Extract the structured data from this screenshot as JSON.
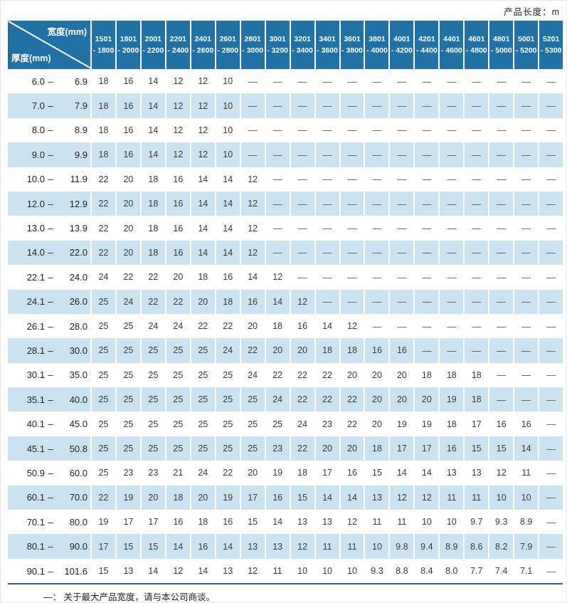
{
  "page": {
    "unit_label": "产品长度：m",
    "footnote": "—： 关于最大产品宽度，请与本公司商谈。"
  },
  "colors": {
    "header_bg": "#2171a6",
    "stripe_bg": "#cbe2f1",
    "bottom_rule": "#2e5f94"
  },
  "table": {
    "corner": {
      "width_label": "宽度(mm)",
      "thickness_label": "厚度(mm)"
    },
    "columns": [
      {
        "from": "1501",
        "to": "1800"
      },
      {
        "from": "1801",
        "to": "2000"
      },
      {
        "from": "2001",
        "to": "2200"
      },
      {
        "from": "2201",
        "to": "2400"
      },
      {
        "from": "2401",
        "to": "2600"
      },
      {
        "from": "2601",
        "to": "2800"
      },
      {
        "from": "2801",
        "to": "3000"
      },
      {
        "from": "3001",
        "to": "3200"
      },
      {
        "from": "3201",
        "to": "3400"
      },
      {
        "from": "3401",
        "to": "3600"
      },
      {
        "from": "3601",
        "to": "3800"
      },
      {
        "from": "3801",
        "to": "4000"
      },
      {
        "from": "4001",
        "to": "4200"
      },
      {
        "from": "4201",
        "to": "4400"
      },
      {
        "from": "4401",
        "to": "4600"
      },
      {
        "from": "4601",
        "to": "4800"
      },
      {
        "from": "4801",
        "to": "5000"
      },
      {
        "from": "5001",
        "to": "5200"
      },
      {
        "from": "5201",
        "to": "5300"
      }
    ],
    "rows": [
      {
        "min": "6.0",
        "max": "6.9",
        "values": [
          "18",
          "16",
          "14",
          "12",
          "12",
          "10",
          "—",
          "—",
          "—",
          "—",
          "—",
          "—",
          "—",
          "—",
          "—",
          "—",
          "—",
          "—",
          "—"
        ]
      },
      {
        "min": "7.0",
        "max": "7.9",
        "values": [
          "18",
          "16",
          "14",
          "12",
          "12",
          "10",
          "—",
          "—",
          "—",
          "—",
          "—",
          "—",
          "—",
          "—",
          "—",
          "—",
          "—",
          "—",
          "—"
        ]
      },
      {
        "min": "8.0",
        "max": "8.9",
        "values": [
          "18",
          "16",
          "14",
          "12",
          "12",
          "10",
          "—",
          "—",
          "—",
          "—",
          "—",
          "—",
          "—",
          "—",
          "—",
          "—",
          "—",
          "—",
          "—"
        ]
      },
      {
        "min": "9.0",
        "max": "9.9",
        "values": [
          "18",
          "16",
          "14",
          "12",
          "12",
          "10",
          "—",
          "—",
          "—",
          "—",
          "—",
          "—",
          "—",
          "—",
          "—",
          "—",
          "—",
          "—",
          "—"
        ]
      },
      {
        "min": "10.0",
        "max": "11.9",
        "values": [
          "22",
          "20",
          "18",
          "16",
          "14",
          "14",
          "12",
          "—",
          "—",
          "—",
          "—",
          "—",
          "—",
          "—",
          "—",
          "—",
          "—",
          "—",
          "—"
        ]
      },
      {
        "min": "12.0",
        "max": "12.9",
        "values": [
          "22",
          "20",
          "18",
          "16",
          "14",
          "14",
          "12",
          "—",
          "—",
          "—",
          "—",
          "—",
          "—",
          "—",
          "—",
          "—",
          "—",
          "—",
          "—"
        ]
      },
      {
        "min": "13.0",
        "max": "13.9",
        "values": [
          "22",
          "20",
          "18",
          "16",
          "14",
          "14",
          "12",
          "—",
          "—",
          "—",
          "—",
          "—",
          "—",
          "—",
          "—",
          "—",
          "—",
          "—",
          "—"
        ]
      },
      {
        "min": "14.0",
        "max": "22.0",
        "values": [
          "22",
          "20",
          "18",
          "16",
          "14",
          "14",
          "12",
          "—",
          "—",
          "—",
          "—",
          "—",
          "—",
          "—",
          "—",
          "—",
          "—",
          "—",
          "—"
        ]
      },
      {
        "min": "22.1",
        "max": "24.0",
        "values": [
          "24",
          "22",
          "22",
          "20",
          "18",
          "16",
          "14",
          "12",
          "—",
          "—",
          "—",
          "—",
          "—",
          "—",
          "—",
          "—",
          "—",
          "—",
          "—"
        ]
      },
      {
        "min": "24.1",
        "max": "26.0",
        "values": [
          "25",
          "24",
          "22",
          "22",
          "20",
          "18",
          "16",
          "14",
          "12",
          "—",
          "—",
          "—",
          "—",
          "—",
          "—",
          "—",
          "—",
          "—",
          "—"
        ]
      },
      {
        "min": "26.1",
        "max": "28.0",
        "values": [
          "25",
          "25",
          "24",
          "24",
          "22",
          "22",
          "20",
          "18",
          "16",
          "14",
          "12",
          "—",
          "—",
          "—",
          "—",
          "—",
          "—",
          "—",
          "—"
        ]
      },
      {
        "min": "28.1",
        "max": "30.0",
        "values": [
          "25",
          "25",
          "25",
          "25",
          "25",
          "24",
          "22",
          "20",
          "20",
          "18",
          "18",
          "16",
          "16",
          "—",
          "—",
          "—",
          "—",
          "—",
          "—"
        ]
      },
      {
        "min": "30.1",
        "max": "35.0",
        "values": [
          "25",
          "25",
          "25",
          "25",
          "25",
          "25",
          "24",
          "22",
          "22",
          "22",
          "20",
          "20",
          "20",
          "18",
          "18",
          "18",
          "—",
          "—",
          "—"
        ]
      },
      {
        "min": "35.1",
        "max": "40.0",
        "values": [
          "25",
          "25",
          "25",
          "25",
          "25",
          "25",
          "25",
          "24",
          "22",
          "22",
          "22",
          "20",
          "20",
          "20",
          "19",
          "18",
          "—",
          "—",
          "—"
        ]
      },
      {
        "min": "40.1",
        "max": "45.0",
        "values": [
          "25",
          "25",
          "25",
          "25",
          "25",
          "25",
          "25",
          "25",
          "24",
          "23",
          "22",
          "20",
          "19",
          "19",
          "18",
          "17",
          "16",
          "16",
          "—"
        ]
      },
      {
        "min": "45.1",
        "max": "50.8",
        "values": [
          "25",
          "25",
          "25",
          "25",
          "25",
          "25",
          "25",
          "23",
          "22",
          "20",
          "20",
          "18",
          "17",
          "17",
          "16",
          "15",
          "15",
          "14",
          "—"
        ]
      },
      {
        "min": "50.9",
        "max": "60.0",
        "values": [
          "25",
          "23",
          "23",
          "21",
          "24",
          "22",
          "20",
          "19",
          "18",
          "17",
          "16",
          "15",
          "14",
          "14",
          "13",
          "13",
          "12",
          "11",
          "—"
        ]
      },
      {
        "min": "60.1",
        "max": "70.0",
        "values": [
          "22",
          "19",
          "20",
          "18",
          "20",
          "19",
          "17",
          "16",
          "15",
          "14",
          "14",
          "13",
          "12",
          "12",
          "11",
          "11",
          "10",
          "10",
          "—"
        ]
      },
      {
        "min": "70.1",
        "max": "80.0",
        "values": [
          "19",
          "17",
          "17",
          "16",
          "18",
          "16",
          "15",
          "14",
          "13",
          "13",
          "12",
          "11",
          "11",
          "10",
          "10",
          "9.7",
          "9.3",
          "8.9",
          "—"
        ]
      },
      {
        "min": "80.1",
        "max": "90.0",
        "values": [
          "17",
          "15",
          "15",
          "14",
          "16",
          "14",
          "13",
          "13",
          "12",
          "11",
          "11",
          "10",
          "9.8",
          "9.4",
          "8.9",
          "8.6",
          "8.2",
          "7.9",
          "—"
        ]
      },
      {
        "min": "90.1",
        "max": "101.6",
        "values": [
          "15",
          "13",
          "14",
          "12",
          "14",
          "13",
          "12",
          "11",
          "10",
          "10",
          "10",
          "9.3",
          "8.8",
          "8.4",
          "8.0",
          "7.7",
          "7.4",
          "7.1",
          "—"
        ]
      }
    ]
  }
}
